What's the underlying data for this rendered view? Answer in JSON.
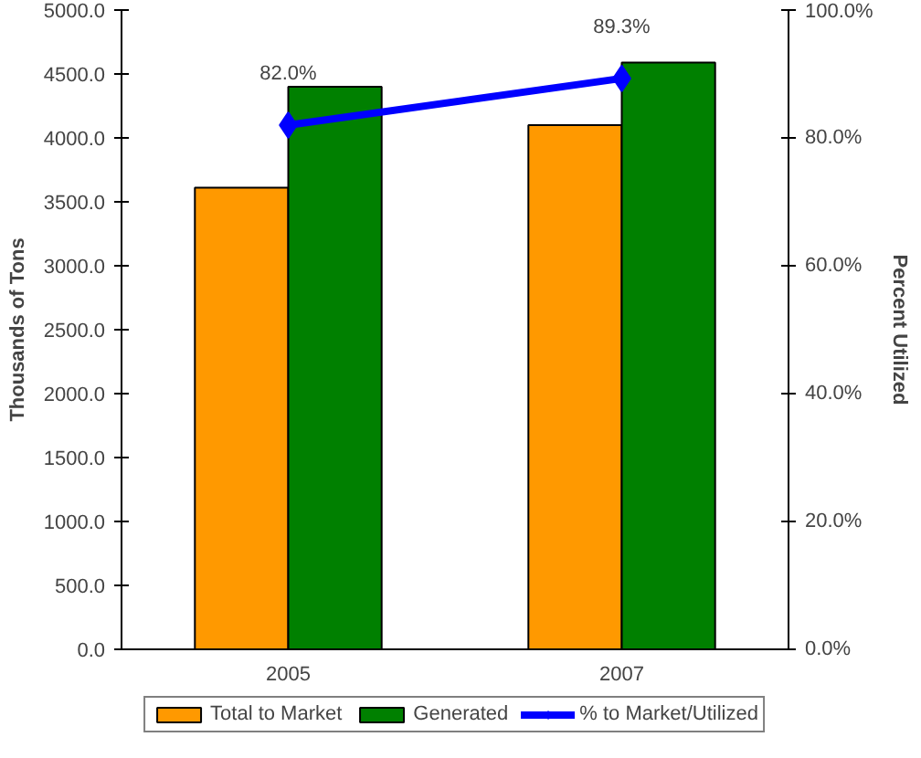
{
  "chart_data": {
    "type": "bar",
    "categories": [
      "2005",
      "2007"
    ],
    "ylabel": "Thousands of Tons",
    "y2label": "Percent Utilized",
    "series": [
      {
        "name": "Total to Market",
        "color": "#ff9900",
        "values": [
          3610,
          4100
        ]
      },
      {
        "name": "Generated",
        "color": "#008000",
        "values": [
          4400,
          4590
        ]
      },
      {
        "name": "% to Market/Utilized",
        "color": "#0000ff",
        "type": "line",
        "axis": "y2",
        "marker": "diamond",
        "values": [
          82.0,
          89.3
        ],
        "value_labels": [
          "82.0%",
          "89.3%"
        ]
      }
    ],
    "ylim": [
      0,
      5000
    ],
    "yticks": [
      {
        "value": 0,
        "label": "0.0"
      },
      {
        "value": 500,
        "label": "500.0"
      },
      {
        "value": 1000,
        "label": "1000.0"
      },
      {
        "value": 1500,
        "label": "1500.0"
      },
      {
        "value": 2000,
        "label": "2000.0"
      },
      {
        "value": 2500,
        "label": "2500.0"
      },
      {
        "value": 3000,
        "label": "3000.0"
      },
      {
        "value": 3500,
        "label": "3500.0"
      },
      {
        "value": 4000,
        "label": "4000.0"
      },
      {
        "value": 4500,
        "label": "4500.0"
      },
      {
        "value": 5000,
        "label": "5000.0"
      }
    ],
    "y2lim": [
      0,
      100
    ],
    "y2ticks": [
      {
        "value": 0,
        "label": "0.0%"
      },
      {
        "value": 20,
        "label": "20.0%"
      },
      {
        "value": 40,
        "label": "40.0%"
      },
      {
        "value": 60,
        "label": "60.0%"
      },
      {
        "value": 80,
        "label": "80.0%"
      },
      {
        "value": 100,
        "label": "100.0%"
      }
    ],
    "grid": false,
    "legend": "bottom"
  }
}
